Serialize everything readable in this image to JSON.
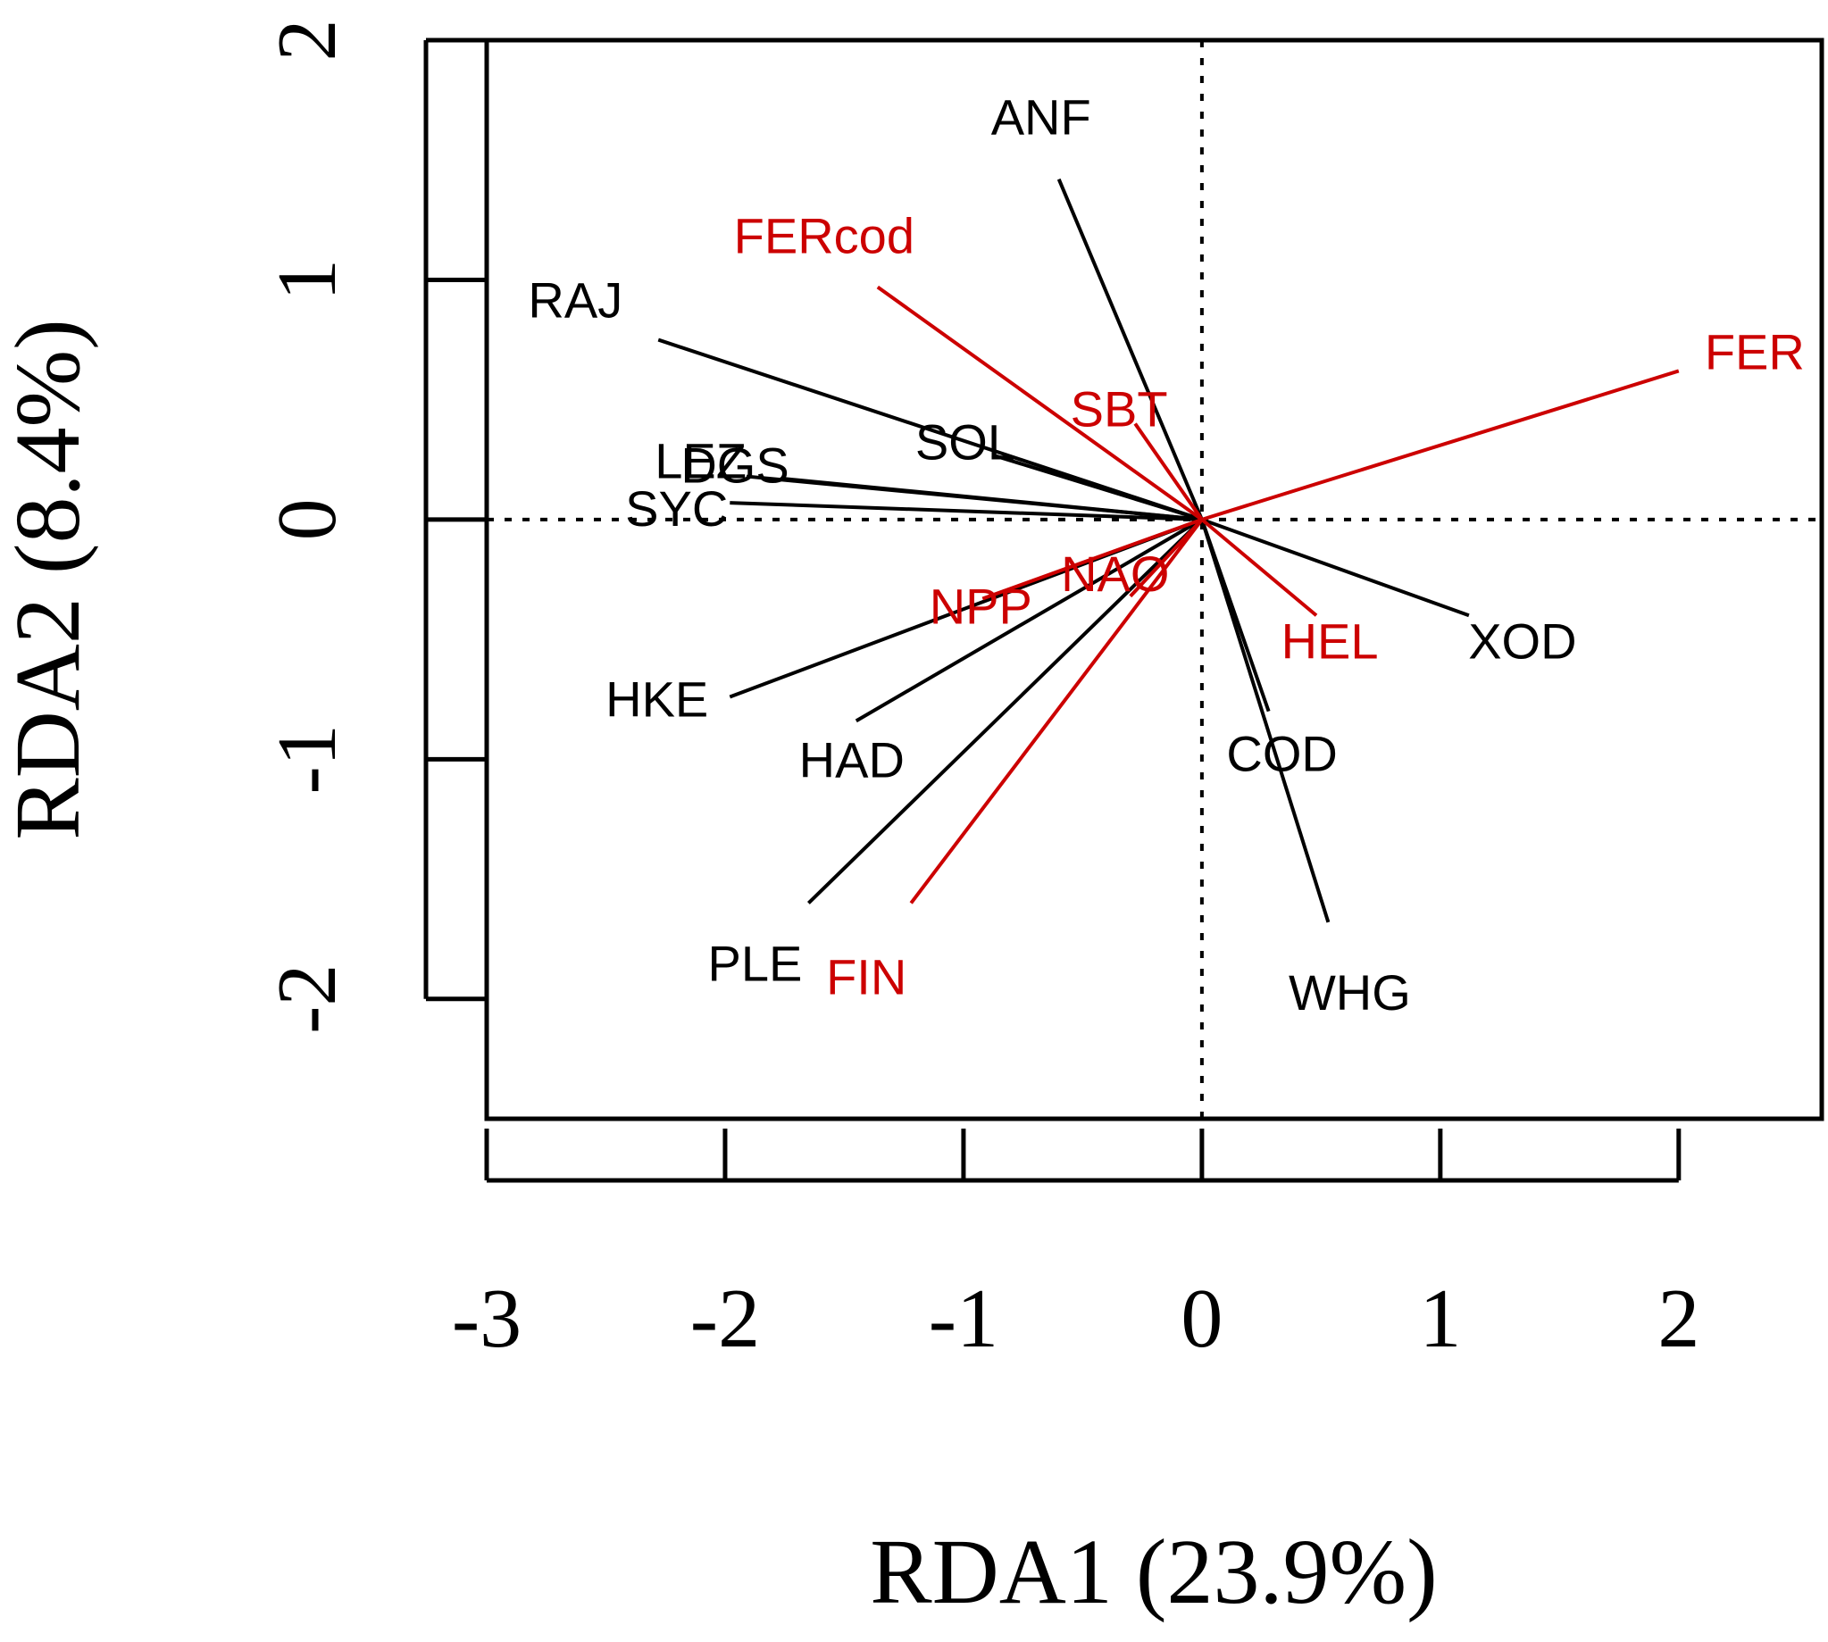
{
  "chart_data": {
    "type": "biplot",
    "xlabel": "RDA1 (23.9%)",
    "ylabel": "RDA2 (8.4%)",
    "xlim": [
      -3,
      2.6
    ],
    "ylim": [
      -2.5,
      2.0
    ],
    "xticks": [
      "-3",
      "-2",
      "-1",
      "0",
      "1",
      "2"
    ],
    "yticks": [
      "-2",
      "-1",
      "0",
      "1",
      "2"
    ],
    "reference_lines": {
      "x": 0,
      "y": 0,
      "style": "dotted"
    },
    "colors": {
      "species": "#000000",
      "environment": "#cc0000"
    },
    "series": [
      {
        "group": "species",
        "arrows": [
          {
            "label": "ANF",
            "x": -0.6,
            "y": 1.42
          },
          {
            "label": "RAJ",
            "x": -2.28,
            "y": 0.75
          },
          {
            "label": "SOL",
            "x": -0.88,
            "y": 0.27
          },
          {
            "label": "LEZ",
            "x": -1.91,
            "y": 0.18
          },
          {
            "label": "DGS",
            "x": -1.75,
            "y": 0.17
          },
          {
            "label": "SYC",
            "x": -1.98,
            "y": 0.07
          },
          {
            "label": "XOD",
            "x": 1.12,
            "y": -0.4
          },
          {
            "label": "COD",
            "x": 0.28,
            "y": -0.8
          },
          {
            "label": "WHG",
            "x": 0.53,
            "y": -1.68
          },
          {
            "label": "HKE",
            "x": -1.98,
            "y": -0.74
          },
          {
            "label": "HAD",
            "x": -1.45,
            "y": -0.84
          },
          {
            "label": "PLE",
            "x": -1.65,
            "y": -1.6
          }
        ]
      },
      {
        "group": "environment",
        "arrows": [
          {
            "label": "FERcod",
            "x": -1.36,
            "y": 0.97
          },
          {
            "label": "FER",
            "x": 2.0,
            "y": 0.62
          },
          {
            "label": "SBT",
            "x": -0.28,
            "y": 0.4
          },
          {
            "label": "NPP",
            "x": -0.92,
            "y": -0.33
          },
          {
            "label": "NAO",
            "x": -0.3,
            "y": -0.32
          },
          {
            "label": "HEL",
            "x": 0.48,
            "y": -0.4
          },
          {
            "label": "FIN",
            "x": -1.22,
            "y": -1.6
          }
        ]
      }
    ]
  }
}
